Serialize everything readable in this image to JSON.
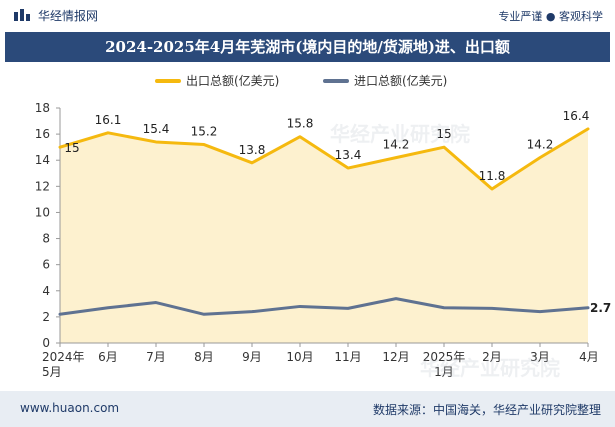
{
  "header": {
    "logo_text": "华经情报网",
    "slogan": "专业严谨 ● 客观科学"
  },
  "watermarks": [
    "华经产业研究院",
    "华经产业研究院"
  ],
  "footer": {
    "url": "www.huaon.com",
    "source": "数据来源：中国海关，华经产业研究院整理"
  },
  "colors": {
    "export": "#f5b90f",
    "export_fill": "#fdf1cf",
    "import": "#5f7291",
    "title_bg": "#2b4a7a"
  },
  "chart_data": {
    "type": "line",
    "title": "2024-2025年4月年芜湖市(境内目的地/货源地)进、出口额",
    "categories": [
      "2024年\n5月",
      "6月",
      "7月",
      "8月",
      "9月",
      "10月",
      "11月",
      "12月",
      "2025年\n1月",
      "2月",
      "3月",
      "4月"
    ],
    "ylim": [
      0,
      18
    ],
    "yticks": [
      0,
      2,
      4,
      6,
      8,
      10,
      12,
      14,
      16,
      18
    ],
    "grid": false,
    "legend_position": "top-center",
    "series": [
      {
        "name": "出口总额(亿美元)",
        "values": [
          15,
          16.1,
          15.4,
          15.2,
          13.8,
          15.8,
          13.4,
          14.2,
          15,
          11.8,
          14.2,
          16.4
        ],
        "labels": [
          "15",
          "16.1",
          "15.4",
          "15.2",
          "13.8",
          "15.8",
          "13.4",
          "14.2",
          "15",
          "11.8",
          "14.2",
          "16.4"
        ],
        "area": true
      },
      {
        "name": "进口总额(亿美元)",
        "values": [
          2.2,
          2.7,
          3.1,
          2.2,
          2.4,
          2.8,
          2.65,
          3.4,
          2.7,
          2.65,
          2.4,
          2.7
        ],
        "labels": [
          "",
          "",
          "",
          "",
          "",
          "",
          "",
          "",
          "",
          "",
          "",
          "2.7"
        ]
      }
    ]
  }
}
